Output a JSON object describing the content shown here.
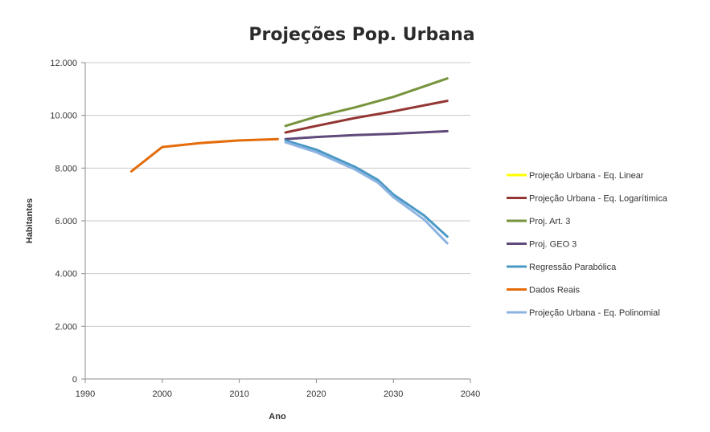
{
  "chart_data": {
    "type": "line",
    "title": "Projeções Pop. Urbana",
    "xlabel": "Ano",
    "ylabel": "Habitantes",
    "xlim": [
      1990,
      2040
    ],
    "ylim": [
      0,
      12000
    ],
    "x_ticks": [
      1990,
      2000,
      2010,
      2020,
      2030,
      2040
    ],
    "y_ticks": [
      0,
      2000,
      4000,
      6000,
      8000,
      10000,
      12000
    ],
    "y_tick_labels": [
      "0",
      "2.000",
      "4.000",
      "6.000",
      "8.000",
      "10.000",
      "12.000"
    ],
    "grid": "horizontal",
    "legend_position": "right",
    "series": [
      {
        "name": "Projeção Urbana - Eq. Linear",
        "color": "#ffff00",
        "x": [],
        "y": []
      },
      {
        "name": "Projeção Urbana - Eq. Logarítimica",
        "color": "#943634",
        "x": [
          2016,
          2020,
          2025,
          2030,
          2037
        ],
        "y": [
          9350,
          9600,
          9900,
          10150,
          10550
        ]
      },
      {
        "name": "Proj. Art. 3",
        "color": "#77933c",
        "x": [
          2016,
          2020,
          2025,
          2030,
          2037
        ],
        "y": [
          9600,
          9950,
          10300,
          10700,
          11400
        ]
      },
      {
        "name": "Proj. GEO 3",
        "color": "#604a7b",
        "x": [
          2016,
          2020,
          2025,
          2030,
          2037
        ],
        "y": [
          9100,
          9180,
          9250,
          9300,
          9400
        ]
      },
      {
        "name": "Regressão Parabólica",
        "color": "#4a98c4",
        "x": [
          2016,
          2020,
          2025,
          2028,
          2030,
          2034,
          2037
        ],
        "y": [
          9050,
          8700,
          8050,
          7550,
          7000,
          6200,
          5400
        ]
      },
      {
        "name": "Dados Reais",
        "color": "#e46c0a",
        "x": [
          1996,
          2000,
          2005,
          2010,
          2015
        ],
        "y": [
          7880,
          8800,
          8950,
          9050,
          9100
        ]
      },
      {
        "name": "Projeção Urbana - Eq. Polinomial",
        "color": "#8db3e2",
        "x": [
          2016,
          2020,
          2025,
          2028,
          2030,
          2034,
          2037
        ],
        "y": [
          8980,
          8600,
          7950,
          7450,
          6900,
          6050,
          5150
        ]
      }
    ]
  }
}
